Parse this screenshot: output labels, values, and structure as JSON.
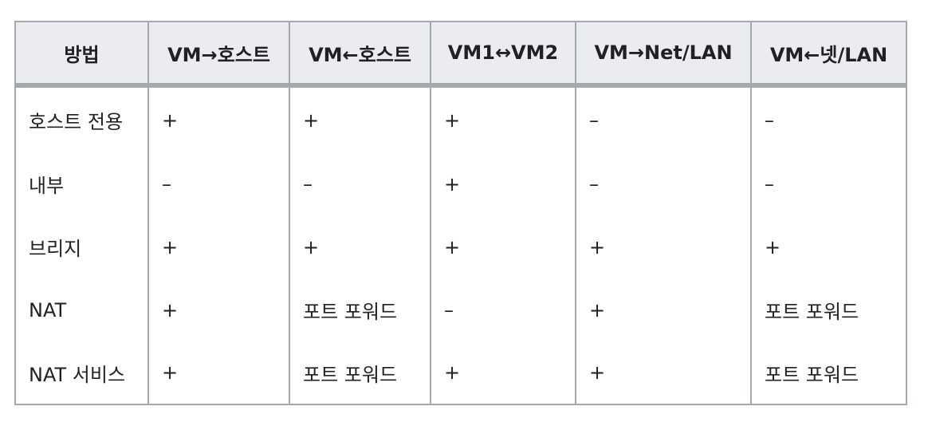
{
  "table": {
    "headers": [
      "방법",
      "VM→호스트",
      "VM←호스트",
      "VM1↔VM2",
      "VM→Net/LAN",
      "VM←넷/LAN"
    ],
    "rows": [
      [
        "호스트 전용",
        "+",
        "+",
        "+",
        "–",
        "–"
      ],
      [
        "내부",
        "–",
        "–",
        "+",
        "–",
        "–"
      ],
      [
        "브리지",
        "+",
        "+",
        "+",
        "+",
        "+"
      ],
      [
        "NAT",
        "+",
        "포트 포워드",
        "–",
        "+",
        "포트 포워드"
      ],
      [
        "NAT 서비스",
        "+",
        "포트 포워드",
        "+",
        "+",
        "포트 포워드"
      ]
    ]
  }
}
